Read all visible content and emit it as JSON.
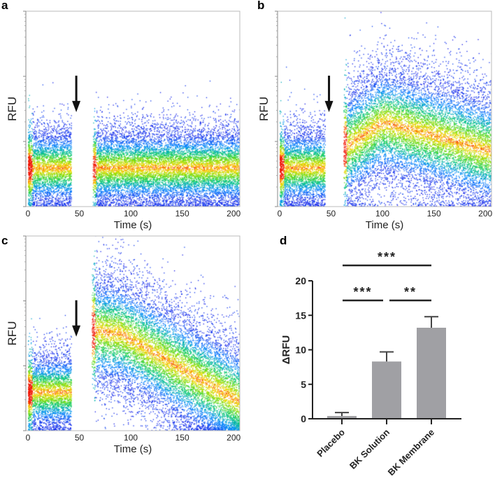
{
  "chart_data": [
    {
      "panel": "a",
      "type": "scatter",
      "xlabel": "Time (s)",
      "ylabel": "RFU",
      "xticks": [
        "0",
        "50",
        "100",
        "150",
        "200"
      ],
      "xlim": [
        -2,
        206
      ],
      "ylim": [
        0,
        3
      ],
      "gap_s": [
        42,
        63
      ],
      "arrow_at_s": 47,
      "density_model": {
        "pre_mean": 0.6,
        "post_mean_at": [
          [
            63,
            0.6
          ],
          [
            120,
            0.6
          ],
          [
            206,
            0.6
          ]
        ],
        "sd": 0.3
      }
    },
    {
      "panel": "b",
      "type": "scatter",
      "xlabel": "Time (s)",
      "ylabel": "RFU",
      "xticks": [
        "0",
        "50",
        "100",
        "150",
        "200"
      ],
      "xlim": [
        -2,
        206
      ],
      "ylim": [
        0,
        3
      ],
      "gap_s": [
        44,
        62
      ],
      "arrow_at_s": 48,
      "density_model": {
        "pre_mean": 0.6,
        "post_mean_at": [
          [
            62,
            0.9
          ],
          [
            100,
            1.3
          ],
          [
            150,
            1.1
          ],
          [
            206,
            0.85
          ]
        ],
        "sd": 0.45
      }
    },
    {
      "panel": "c",
      "type": "scatter",
      "xlabel": "Time (s)",
      "ylabel": "RFU",
      "xticks": [
        "0",
        "50",
        "100",
        "150",
        "200"
      ],
      "xlim": [
        -2,
        206
      ],
      "ylim": [
        0,
        3
      ],
      "gap_s": [
        42,
        62
      ],
      "arrow_at_s": 47,
      "density_model": {
        "pre_mean": 0.6,
        "post_mean_at": [
          [
            62,
            1.55
          ],
          [
            90,
            1.5
          ],
          [
            150,
            0.95
          ],
          [
            206,
            0.45
          ]
        ],
        "sd": 0.45
      }
    },
    {
      "panel": "d",
      "type": "bar",
      "ylabel": "ΔRFU",
      "ylim": [
        0,
        20
      ],
      "yticks": [
        "0",
        "5",
        "10",
        "15",
        "20"
      ],
      "categories": [
        "Placebo",
        "BK Solution",
        "BK Membrane"
      ],
      "values": [
        0.4,
        8.3,
        13.2
      ],
      "errors_upper": [
        0.9,
        9.7,
        14.8
      ],
      "bar_color": "#a0a0a4",
      "significance": [
        {
          "from": 0,
          "to": 2,
          "label": "***"
        },
        {
          "from": 0,
          "to": 1,
          "label": "***"
        },
        {
          "from": 1,
          "to": 2,
          "label": "**"
        }
      ]
    }
  ],
  "panel_labels": [
    "a",
    "b",
    "c",
    "d"
  ]
}
